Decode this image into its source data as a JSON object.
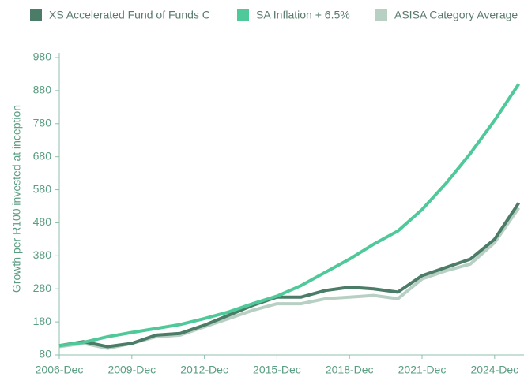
{
  "chart_data": {
    "type": "line",
    "y_label": "Growth per R100 invested at inception",
    "categories": [
      "2006-Dec",
      null,
      null,
      "2009-Dec",
      null,
      null,
      "2012-Dec",
      null,
      null,
      "2015-Dec",
      null,
      null,
      "2018-Dec",
      null,
      null,
      "2021-Dec",
      null,
      null,
      "2024-Dec",
      null
    ],
    "series": [
      {
        "name": "XS Accelerated Fund of Funds C",
        "color": "#4a7c68",
        "values": [
          108,
          120,
          105,
          115,
          140,
          145,
          170,
          200,
          230,
          255,
          255,
          275,
          285,
          280,
          270,
          320,
          345,
          370,
          430,
          540
        ]
      },
      {
        "name": "SA Inflation + 6.5%",
        "color": "#4fc99a",
        "values": [
          108,
          118,
          135,
          148,
          160,
          172,
          190,
          210,
          235,
          258,
          290,
          330,
          370,
          415,
          455,
          520,
          600,
          690,
          790,
          900
        ]
      },
      {
        "name": "ASISA Category Average",
        "color": "#b8d0c4",
        "values": [
          105,
          115,
          100,
          115,
          135,
          140,
          165,
          190,
          215,
          235,
          235,
          250,
          255,
          260,
          250,
          310,
          335,
          355,
          420,
          525
        ]
      }
    ],
    "ylim": [
      80,
      980
    ],
    "yticks": [
      80,
      180,
      280,
      380,
      480,
      580,
      680,
      780,
      880,
      980
    ]
  }
}
